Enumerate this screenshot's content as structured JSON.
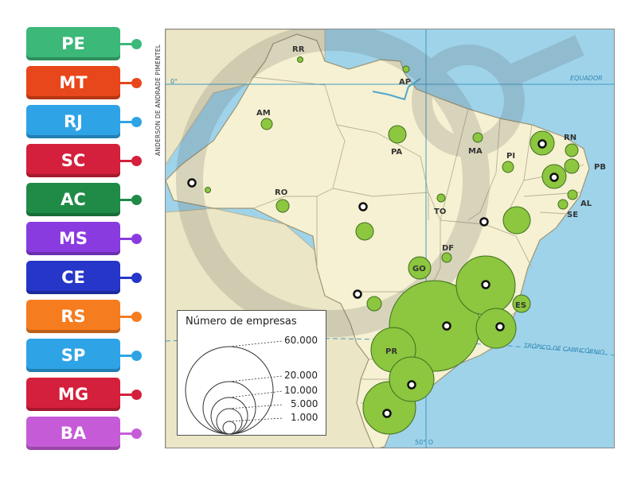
{
  "credit": "ANDERSON DE ANDRADE PIMENTEL",
  "labels": [
    {
      "text": "PE",
      "color": "#3cb878"
    },
    {
      "text": "MT",
      "color": "#e8461b"
    },
    {
      "text": "RJ",
      "color": "#2ea3e6"
    },
    {
      "text": "SC",
      "color": "#d4203c"
    },
    {
      "text": "AC",
      "color": "#1f8b47"
    },
    {
      "text": "MS",
      "color": "#8a3be0"
    },
    {
      "text": "CE",
      "color": "#2536c8"
    },
    {
      "text": "RS",
      "color": "#f57c1f"
    },
    {
      "text": "SP",
      "color": "#2ea3e6"
    },
    {
      "text": "MG",
      "color": "#d4203c"
    },
    {
      "text": "BA",
      "color": "#c65bd8"
    }
  ],
  "map": {
    "equator_label": "EQUADOR",
    "zero_label": "0°",
    "tropic_label": "TRÓPICO DE CAPRICÓRNIO",
    "meridian_label": "50° O",
    "state_labels": [
      "RR",
      "AP",
      "AM",
      "PA",
      "MA",
      "PI",
      "RN",
      "PB",
      "AL",
      "SE",
      "RO",
      "TO",
      "DF",
      "GO",
      "ES",
      "PR"
    ]
  },
  "legend": {
    "title": "Número de empresas",
    "values": [
      "60.000",
      "20.000",
      "10.000",
      "5.000",
      "1.000"
    ]
  },
  "colors": {
    "ocean": "#9fd3ea",
    "land": "#f6f1d2",
    "neighbor": "#ebe6c6",
    "bubble": "#8dc63f",
    "bubble_stroke": "#3d6e1f"
  }
}
